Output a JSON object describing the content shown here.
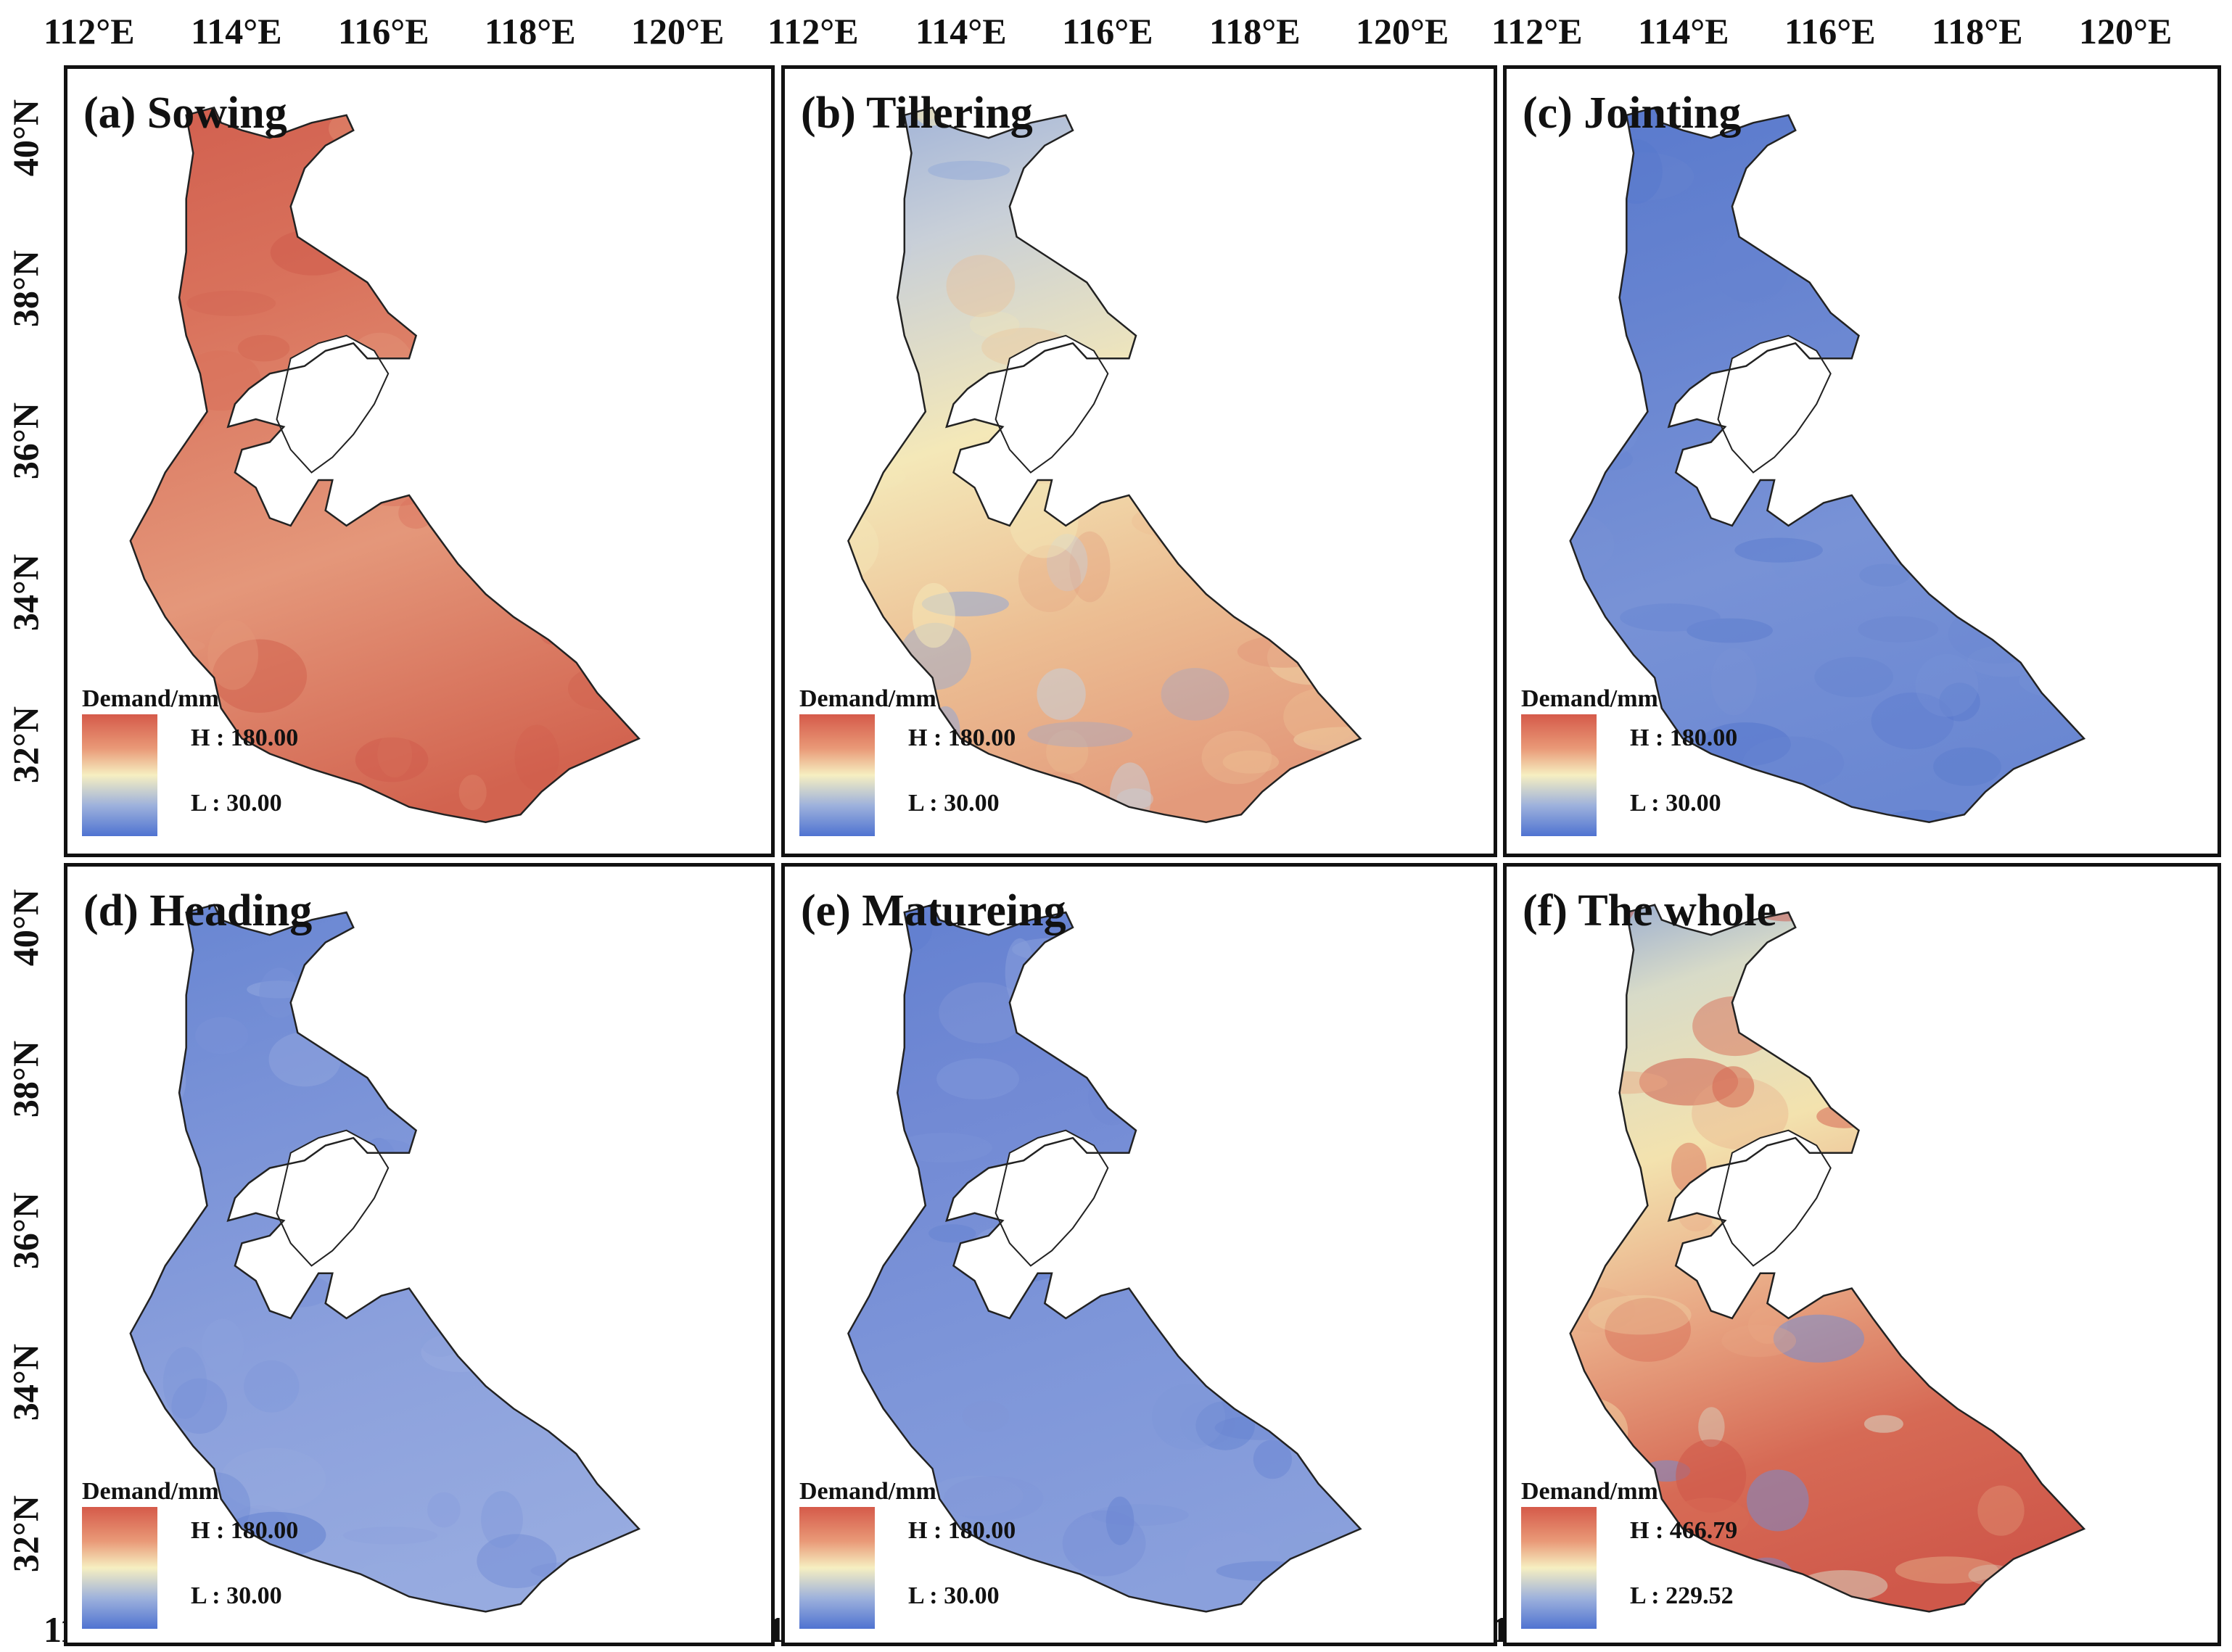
{
  "figure": {
    "longitude_ticks": [
      "112°E",
      "114°E",
      "116°E",
      "118°E",
      "120°E"
    ],
    "latitude_ticks": [
      "40°N",
      "38°N",
      "36°N",
      "34°N",
      "32°N"
    ],
    "legend_title": "Demand/mm",
    "panels": [
      {
        "title": "(a) Sowing",
        "legend_high": "H : 180.00",
        "legend_low": "L : 30.00",
        "palette": [
          "#cf5a4b",
          "#d9725c",
          "#e4977a",
          "#d2634f"
        ]
      },
      {
        "title": "(b) Tillering",
        "legend_high": "H : 180.00",
        "legend_low": "L : 30.00",
        "palette": [
          "#8ea6d8",
          "#c8cfd8",
          "#f4e8b8",
          "#ecbe93",
          "#e39a7b"
        ]
      },
      {
        "title": "(c) Jointing",
        "legend_high": "H : 180.00",
        "legend_low": "L : 30.00",
        "palette": [
          "#5677cc",
          "#6683d0",
          "#7892d6",
          "#6a87d2"
        ]
      },
      {
        "title": "(d) Heading",
        "legend_high": "H : 180.00",
        "legend_low": "L : 30.00",
        "palette": [
          "#6382d0",
          "#7891d7",
          "#8ba0dc",
          "#97abe0"
        ]
      },
      {
        "title": "(e) Matureing",
        "legend_high": "H : 180.00",
        "legend_low": "L : 30.00",
        "palette": [
          "#5f7ecf",
          "#7189d4",
          "#7e96d9",
          "#8aa0dc"
        ]
      },
      {
        "title": "(f) The whole",
        "legend_high": "H : 466.79",
        "legend_low": "L : 229.52",
        "palette": [
          "#6f8dd6",
          "#d8dbc8",
          "#f3e2ae",
          "#e8a683",
          "#d66a55",
          "#cf584a"
        ]
      }
    ]
  }
}
